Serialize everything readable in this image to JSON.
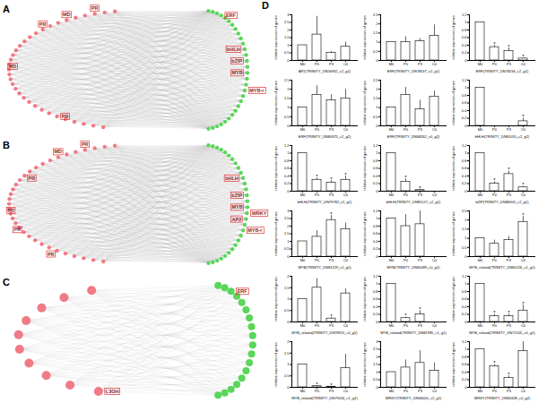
{
  "networks": [
    {
      "panel": "A",
      "source_nodes": 34,
      "target_nodes": 30,
      "labels": [
        {
          "text": "PR",
          "side": "source",
          "node": 2
        },
        {
          "text": "MD",
          "side": "source",
          "node": 5
        },
        {
          "text": "PR",
          "side": "source",
          "node": 8
        },
        {
          "text": "MD",
          "side": "source",
          "node": 15
        },
        {
          "text": "PR",
          "side": "source",
          "node": 28
        },
        {
          "text": "ERF",
          "side": "target",
          "node": 3
        },
        {
          "text": "bHLH",
          "side": "target",
          "node": 11
        },
        {
          "text": "bZIP",
          "side": "target",
          "node": 13
        },
        {
          "text": "MYB",
          "side": "target",
          "node": 15
        },
        {
          "text": "MYB-r",
          "side": "target",
          "node": 18
        }
      ]
    },
    {
      "panel": "B",
      "source_nodes": 34,
      "target_nodes": 30,
      "labels": [
        {
          "text": "PR",
          "side": "source",
          "node": 3
        },
        {
          "text": "MD",
          "side": "source",
          "node": 6
        },
        {
          "text": "PR",
          "side": "source",
          "node": 10
        },
        {
          "text": "bHLH",
          "side": "target",
          "node": 10
        },
        {
          "text": "bZIP",
          "side": "target",
          "node": 13
        },
        {
          "text": "MYB",
          "side": "target",
          "node": 15
        },
        {
          "text": "AP2",
          "side": "target",
          "node": 17
        },
        {
          "text": "WRKY",
          "side": "target",
          "node": 16
        },
        {
          "text": "MYB-r",
          "side": "target",
          "node": 19
        },
        {
          "text": "PR",
          "side": "source",
          "node": 17
        },
        {
          "text": "PR",
          "side": "source",
          "node": 21
        },
        {
          "text": "PR",
          "side": "source",
          "node": 27
        }
      ]
    },
    {
      "panel": "C",
      "source_nodes": 10,
      "target_nodes": 18,
      "labels": [
        {
          "text": "ERF",
          "side": "target",
          "node": 2
        },
        {
          "text": "L3OH",
          "side": "source",
          "node": 9
        }
      ]
    }
  ],
  "chart_panel": "D",
  "chart_data": [
    {
      "type": "bar",
      "x_label": "AP2(TRINITY_DN56932_c2_g1)",
      "y_label": "relative expression of genes",
      "categories": [
        "M0",
        "P0",
        "P3",
        "C0"
      ],
      "values": [
        1,
        1.7,
        0.5,
        0.9
      ],
      "errors": [
        null,
        1.2,
        0.1,
        0.3
      ],
      "annotations": [
        null,
        null,
        null,
        null
      ],
      "ylim": [
        0,
        3
      ],
      "yticks": [
        0,
        0.5,
        1,
        1.5,
        2,
        2.5,
        3
      ],
      "color": "#ffffff"
    },
    {
      "type": "bar",
      "x_label": "ERF(TRINITY_DN78537_c2_g1)",
      "y_label": "relative expression of genes",
      "categories": [
        "M0",
        "P0",
        "P3",
        "C0"
      ],
      "values": [
        1,
        1,
        1.05,
        1.35
      ],
      "errors": [
        null,
        0.3,
        0.15,
        0.6
      ],
      "annotations": [
        null,
        null,
        null,
        null
      ],
      "ylim": [
        0,
        2.5
      ],
      "yticks": [
        0,
        0.5,
        1,
        1.5,
        2,
        2.5
      ],
      "color": "#ffffff"
    },
    {
      "type": "bar",
      "x_label": "ERF(TRINITY_DN78234_c2_g1)",
      "y_label": "relative expression of genes",
      "categories": [
        "M0",
        "P0",
        "P3",
        "C0"
      ],
      "values": [
        1,
        0.35,
        0.25,
        0.05
      ],
      "errors": [
        null,
        0.05,
        0.08,
        0.02
      ],
      "annotations": [
        null,
        "*",
        "*",
        "*"
      ],
      "ylim": [
        0,
        1.2
      ],
      "yticks": [
        0,
        0.2,
        0.4,
        0.6,
        0.8,
        1,
        1.2
      ],
      "color": "#ffffff"
    },
    {
      "type": "bar",
      "x_label": "ERF(TRINITY_DN80375_c2_g2)",
      "y_label": "relative expression of genes",
      "categories": [
        "M0",
        "P0",
        "P3",
        "C0"
      ],
      "values": [
        1,
        1.7,
        1.4,
        1.5
      ],
      "errors": [
        null,
        0.5,
        0.3,
        0.5
      ],
      "annotations": [
        null,
        null,
        null,
        null
      ],
      "ylim": [
        0,
        2.5
      ],
      "yticks": [
        0,
        0.5,
        1,
        1.5,
        2,
        2.5
      ],
      "color": "#ffffff"
    },
    {
      "type": "bar",
      "x_label": "ERF(TRINITY_DN68262_c0_g2)",
      "y_label": "relative expression of genes",
      "categories": [
        "M0",
        "P0",
        "P3",
        "C0"
      ],
      "values": [
        1,
        1.7,
        0.9,
        1.6
      ],
      "errors": [
        null,
        0.4,
        0.5,
        0.3
      ],
      "annotations": [
        null,
        null,
        null,
        null
      ],
      "ylim": [
        0,
        2.5
      ],
      "yticks": [
        0,
        0.5,
        1,
        1.5,
        2,
        2.5
      ],
      "color": "#ffffff"
    },
    {
      "type": "bar",
      "x_label": "bHLH(TRINITY_DN81055_c2_g2)",
      "y_label": "relative expression of genes",
      "categories": [
        "M0",
        "P0",
        "P3",
        "C0"
      ],
      "values": [
        1,
        0,
        0,
        0.12
      ],
      "errors": [
        null,
        null,
        null,
        0.08
      ],
      "annotations": [
        null,
        null,
        null,
        "*"
      ],
      "ylim": [
        0,
        1.2
      ],
      "yticks": [
        0,
        0.2,
        0.4,
        0.6,
        0.8,
        1,
        1.2
      ],
      "color": "#ffffff"
    },
    {
      "type": "bar",
      "x_label": "bHLH(TRINITY_DN79782_c2_g1)",
      "y_label": "relative expression of genes",
      "categories": [
        "M0",
        "P0",
        "P3",
        "C0"
      ],
      "values": [
        1,
        0.3,
        0.22,
        0.3
      ],
      "errors": [
        null,
        0.05,
        0.06,
        0.1
      ],
      "annotations": [
        null,
        "*",
        "*",
        "*"
      ],
      "ylim": [
        0,
        1.2
      ],
      "yticks": [
        0,
        0.2,
        0.4,
        0.6,
        0.8,
        1,
        1.2
      ],
      "color": "#ffffff"
    },
    {
      "type": "bar",
      "x_label": "bHLH(TRINITY_DN85127_c2_g1)",
      "y_label": "relative expression of genes",
      "categories": [
        "M0",
        "P0",
        "P3",
        "C0"
      ],
      "values": [
        1,
        0.25,
        0.03,
        0
      ],
      "errors": [
        null,
        0.08,
        0.02,
        null
      ],
      "annotations": [
        null,
        "*",
        "*",
        null
      ],
      "ylim": [
        0,
        1.2
      ],
      "yticks": [
        0,
        0.2,
        0.4,
        0.6,
        0.8,
        1,
        1.2
      ],
      "color": "#ffffff"
    },
    {
      "type": "bar",
      "x_label": "bZIP(TRINITY_DN86905_c2_g1)",
      "y_label": "relative expression of genes",
      "categories": [
        "M0",
        "P0",
        "P3",
        "C0"
      ],
      "values": [
        1,
        0.2,
        0.45,
        0.1
      ],
      "errors": [
        null,
        0.05,
        0.08,
        0.03
      ],
      "annotations": [
        null,
        "*",
        "*",
        "*"
      ],
      "ylim": [
        0,
        1.2
      ],
      "yticks": [
        0,
        0.2,
        0.4,
        0.6,
        0.8,
        1,
        1.2
      ],
      "color": "#ffffff"
    },
    {
      "type": "bar",
      "x_label": "MYB(TRINITY_DN81229_c2_g1)",
      "y_label": "relative expression of genes",
      "categories": [
        "M0",
        "P0",
        "P3",
        "C0"
      ],
      "values": [
        1,
        1.3,
        2.4,
        1.8
      ],
      "errors": [
        null,
        0.4,
        0.3,
        0.4
      ],
      "annotations": [
        null,
        null,
        "*",
        null
      ],
      "ylim": [
        0,
        3
      ],
      "yticks": [
        0,
        0.5,
        1,
        1.5,
        2,
        2.5,
        3
      ],
      "color": "#ffffff"
    },
    {
      "type": "bar",
      "x_label": "MYB(TRINITY_DN80089_c0_g1)",
      "y_label": "relative expression of genes",
      "categories": [
        "M0",
        "P0",
        "P3",
        "C0"
      ],
      "values": [
        1,
        0.8,
        0.85,
        0
      ],
      "errors": [
        null,
        0.3,
        0.35,
        null
      ],
      "annotations": [
        null,
        null,
        null,
        null
      ],
      "ylim": [
        0,
        1.2
      ],
      "yticks": [
        0,
        0.2,
        0.4,
        0.6,
        0.8,
        1,
        1.2
      ],
      "color": "#ffffff"
    },
    {
      "type": "bar",
      "x_label": "MYB_related(TRINITY_DN80126_c1_g1)",
      "y_label": "relative expression of genes",
      "categories": [
        "M0",
        "P0",
        "P3",
        "C0"
      ],
      "values": [
        1,
        0.7,
        0.9,
        1.9
      ],
      "errors": [
        null,
        0.2,
        0.2,
        0.3
      ],
      "annotations": [
        null,
        null,
        null,
        "*"
      ],
      "ylim": [
        0,
        2.5
      ],
      "yticks": [
        0,
        0.5,
        1,
        1.5,
        2,
        2.5
      ],
      "color": "#ffffff"
    },
    {
      "type": "bar",
      "x_label": "MYB_related(TRINITY_DN78911_c0_g1)",
      "y_label": "relative expression of genes",
      "categories": [
        "M0",
        "P0",
        "P3",
        "C0"
      ],
      "values": [
        1,
        1.5,
        0.15,
        1.25
      ],
      "errors": [
        null,
        0.4,
        0.05,
        0.2
      ],
      "annotations": [
        null,
        null,
        "*",
        null
      ],
      "ylim": [
        0,
        2
      ],
      "yticks": [
        0,
        0.5,
        1,
        1.5,
        2
      ],
      "color": "#ffffff"
    },
    {
      "type": "bar",
      "x_label": "MYB_related(TRINITY_DN81985_c1_g1)",
      "y_label": "relative expression of genes",
      "categories": [
        "M0",
        "P0",
        "P3",
        "C0"
      ],
      "values": [
        1,
        0.1,
        0.2,
        0
      ],
      "errors": [
        null,
        0.03,
        0.1,
        null
      ],
      "annotations": [
        null,
        "*",
        "*",
        null
      ],
      "ylim": [
        0,
        1.2
      ],
      "yticks": [
        0,
        0.2,
        0.4,
        0.6,
        0.8,
        1,
        1.2
      ],
      "color": "#ffffff"
    },
    {
      "type": "bar",
      "x_label": "MYB_related(TRINITY_DN72105_c0_g1)",
      "y_label": "relative expression of genes",
      "categories": [
        "M0",
        "P0",
        "P3",
        "C0"
      ],
      "values": [
        1,
        0.15,
        0.15,
        0.3
      ],
      "errors": [
        null,
        0.05,
        0.06,
        0.15
      ],
      "annotations": [
        null,
        "*",
        "*",
        "*"
      ],
      "ylim": [
        0,
        1.2
      ],
      "yticks": [
        0,
        0.2,
        0.4,
        0.6,
        0.8,
        1,
        1.2
      ],
      "color": "#ffffff"
    },
    {
      "type": "bar",
      "x_label": "MYB_related(TRINITY_DN79026_c1_g1)",
      "y_label": "relative expression of genes",
      "categories": [
        "M0",
        "P0",
        "P3",
        "C0"
      ],
      "values": [
        1,
        0.05,
        0.03,
        0.85
      ],
      "errors": [
        null,
        0.02,
        0.01,
        0.6
      ],
      "annotations": [
        null,
        "*",
        "*",
        null
      ],
      "ylim": [
        0,
        2
      ],
      "yticks": [
        0,
        0.5,
        1,
        1.5,
        2
      ],
      "color": "#ffffff"
    },
    {
      "type": "bar",
      "x_label": "WRKY(TRINITY_DN66000_c2_g1)",
      "y_label": "relative expression of genes",
      "categories": [
        "M0",
        "P0",
        "P3",
        "C0"
      ],
      "values": [
        1,
        1.3,
        1.6,
        1.1
      ],
      "errors": [
        null,
        0.5,
        0.8,
        0.5
      ],
      "annotations": [
        null,
        null,
        null,
        null
      ],
      "ylim": [
        0,
        3
      ],
      "yticks": [
        0,
        0.5,
        1,
        1.5,
        2,
        2.5,
        3
      ],
      "color": "#ffffff"
    },
    {
      "type": "bar",
      "x_label": "WRKY(TRINITY_DN82438_c0_g2)",
      "y_label": "relative expression of genes",
      "categories": [
        "M0",
        "P0",
        "P3",
        "C0"
      ],
      "values": [
        1,
        0.55,
        0.25,
        0.95
      ],
      "errors": [
        null,
        0.05,
        0.05,
        0.3
      ],
      "annotations": [
        null,
        "*",
        "*",
        null
      ],
      "ylim": [
        0,
        1.2
      ],
      "yticks": [
        0,
        0.2,
        0.4,
        0.6,
        0.8,
        1,
        1.2
      ],
      "color": "#ffffff"
    }
  ]
}
